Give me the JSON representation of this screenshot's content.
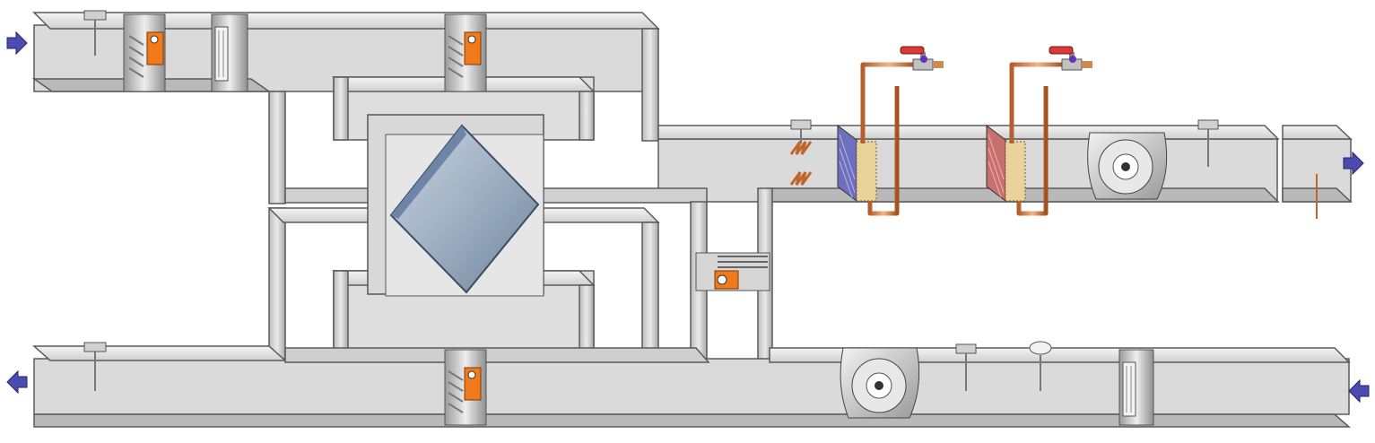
{
  "diagram": {
    "title": "",
    "components": {
      "outdoor_air_inlet": {
        "icon": "arrow-right-icon",
        "color": "#4b4bb0"
      },
      "exhaust_air_outlet": {
        "icon": "arrow-left-icon",
        "color": "#4b4bb0"
      },
      "supply_air_outlet": {
        "icon": "arrow-right-icon",
        "color": "#4b4bb0"
      },
      "extract_air_inlet": {
        "icon": "arrow-left-icon",
        "color": "#4b4bb0"
      },
      "heat_exchanger": {
        "icon": "plate-heat-exchanger-icon",
        "color": "#5f7a9a"
      },
      "damper_actuator": {
        "icon": "actuator-icon",
        "color": "#f07a1c"
      },
      "heating_coil": {
        "icon": "heating-coil-icon",
        "color": "#c87070"
      },
      "cooling_coil": {
        "icon": "cooling-coil-icon",
        "color": "#6f6fc0"
      },
      "supply_fan": {
        "icon": "fan-icon",
        "color": "#bcbcbc"
      },
      "extract_fan": {
        "icon": "fan-icon",
        "color": "#bcbcbc"
      },
      "valve": {
        "icon": "valve-icon",
        "color": "#d83a3a"
      },
      "pipe": {
        "color": "#d08a5c"
      },
      "duct": {
        "color": "#dcdcdc"
      }
    }
  }
}
